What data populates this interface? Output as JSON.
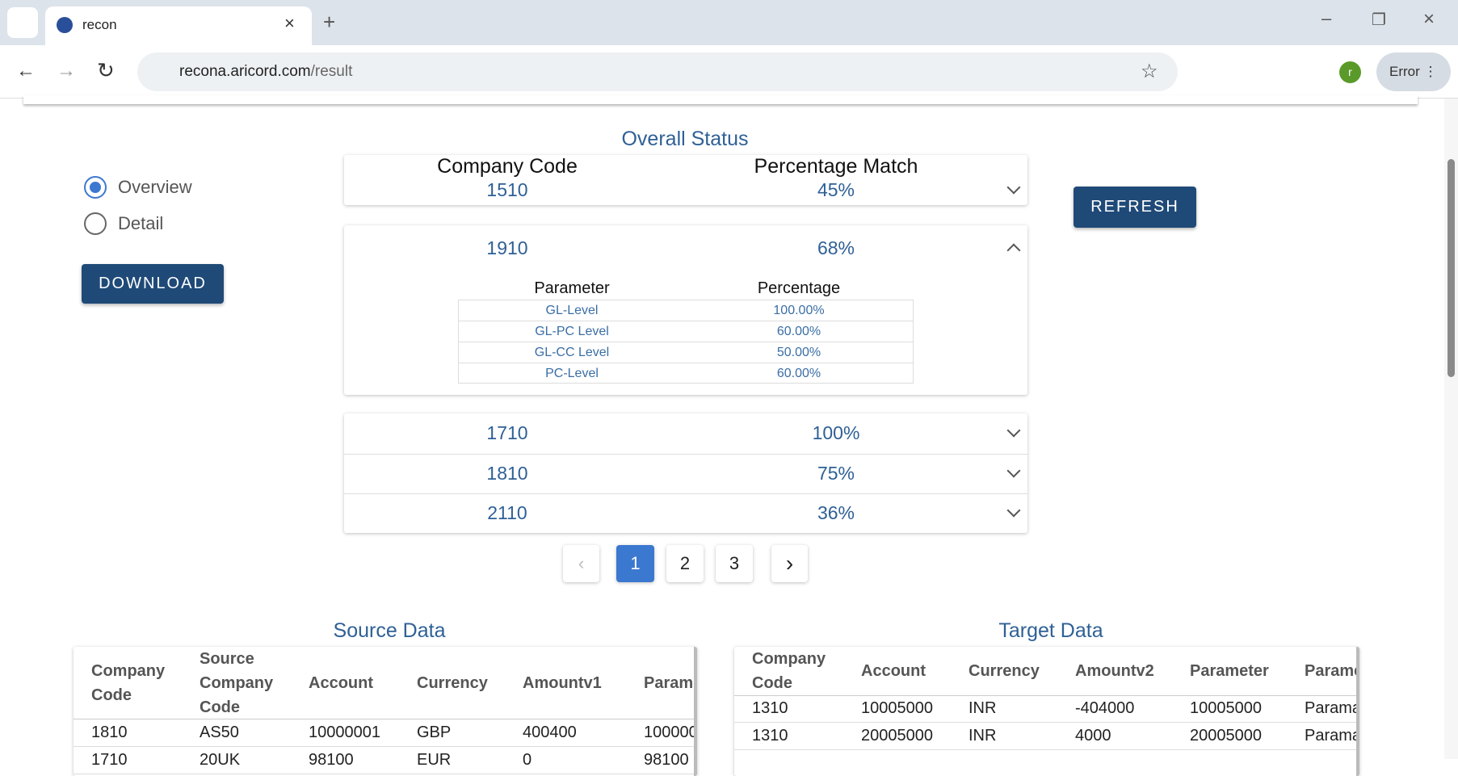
{
  "browser": {
    "tab_title": "recon",
    "url_host": "recona.aricord.com",
    "url_path": "/result",
    "profile": "r",
    "status": "Error"
  },
  "page": {
    "title": "Overall Status",
    "view_options": [
      "Overview",
      "Detail"
    ],
    "download": "DOWNLOAD",
    "refresh": "REFRESH"
  },
  "status": {
    "headers": [
      "Company Code",
      "Percentage Match"
    ],
    "rows": [
      {
        "code": "1510",
        "match": "45%"
      },
      {
        "code": "1910",
        "match": "68%"
      },
      {
        "code": "1710",
        "match": "100%"
      },
      {
        "code": "1810",
        "match": "75%"
      },
      {
        "code": "2110",
        "match": "36%"
      }
    ],
    "detail": {
      "headers": [
        "Parameter",
        "Percentage"
      ],
      "rows": [
        [
          "GL-Level",
          "100.00%"
        ],
        [
          "GL-PC Level",
          "60.00%"
        ],
        [
          "GL-CC Level",
          "50.00%"
        ],
        [
          "PC-Level",
          "60.00%"
        ]
      ]
    }
  },
  "pagination": [
    "1",
    "2",
    "3"
  ],
  "source": {
    "title": "Source Data",
    "columns": [
      "Company Code",
      "Source Company Code",
      "Account",
      "Currency",
      "Amountv1",
      "Parame"
    ],
    "rows": [
      [
        "1810",
        "AS50",
        "10000001",
        "GBP",
        "400400",
        "100000"
      ],
      [
        "1710",
        "20UK",
        "98100",
        "EUR",
        "0",
        "98100"
      ]
    ]
  },
  "target": {
    "title": "Target Data",
    "columns": [
      "Company Code",
      "Account",
      "Currency",
      "Amountv2",
      "Parameter",
      "Parame"
    ],
    "rows": [
      [
        "1310",
        "10005000",
        "INR",
        "-404000",
        "10005000",
        "Parama"
      ],
      [
        "1310",
        "20005000",
        "INR",
        "4000",
        "20005000",
        "Parama"
      ]
    ]
  }
}
